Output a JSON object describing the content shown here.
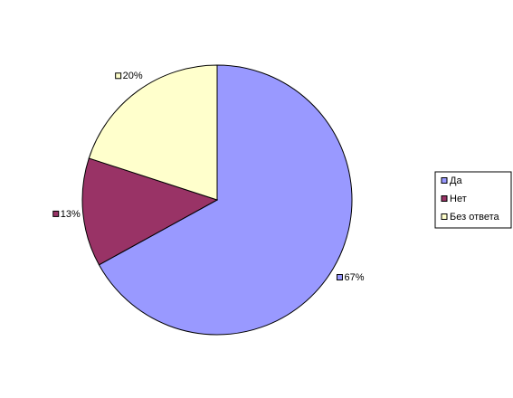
{
  "chart_data": {
    "type": "pie",
    "categories": [
      "Да",
      "Нет",
      "Без ответа"
    ],
    "values": [
      67,
      13,
      20
    ],
    "value_labels": [
      "67%",
      "13%",
      "20%"
    ],
    "colors": [
      "#9999ff",
      "#993366",
      "#ffffcc"
    ],
    "legend": "right"
  }
}
